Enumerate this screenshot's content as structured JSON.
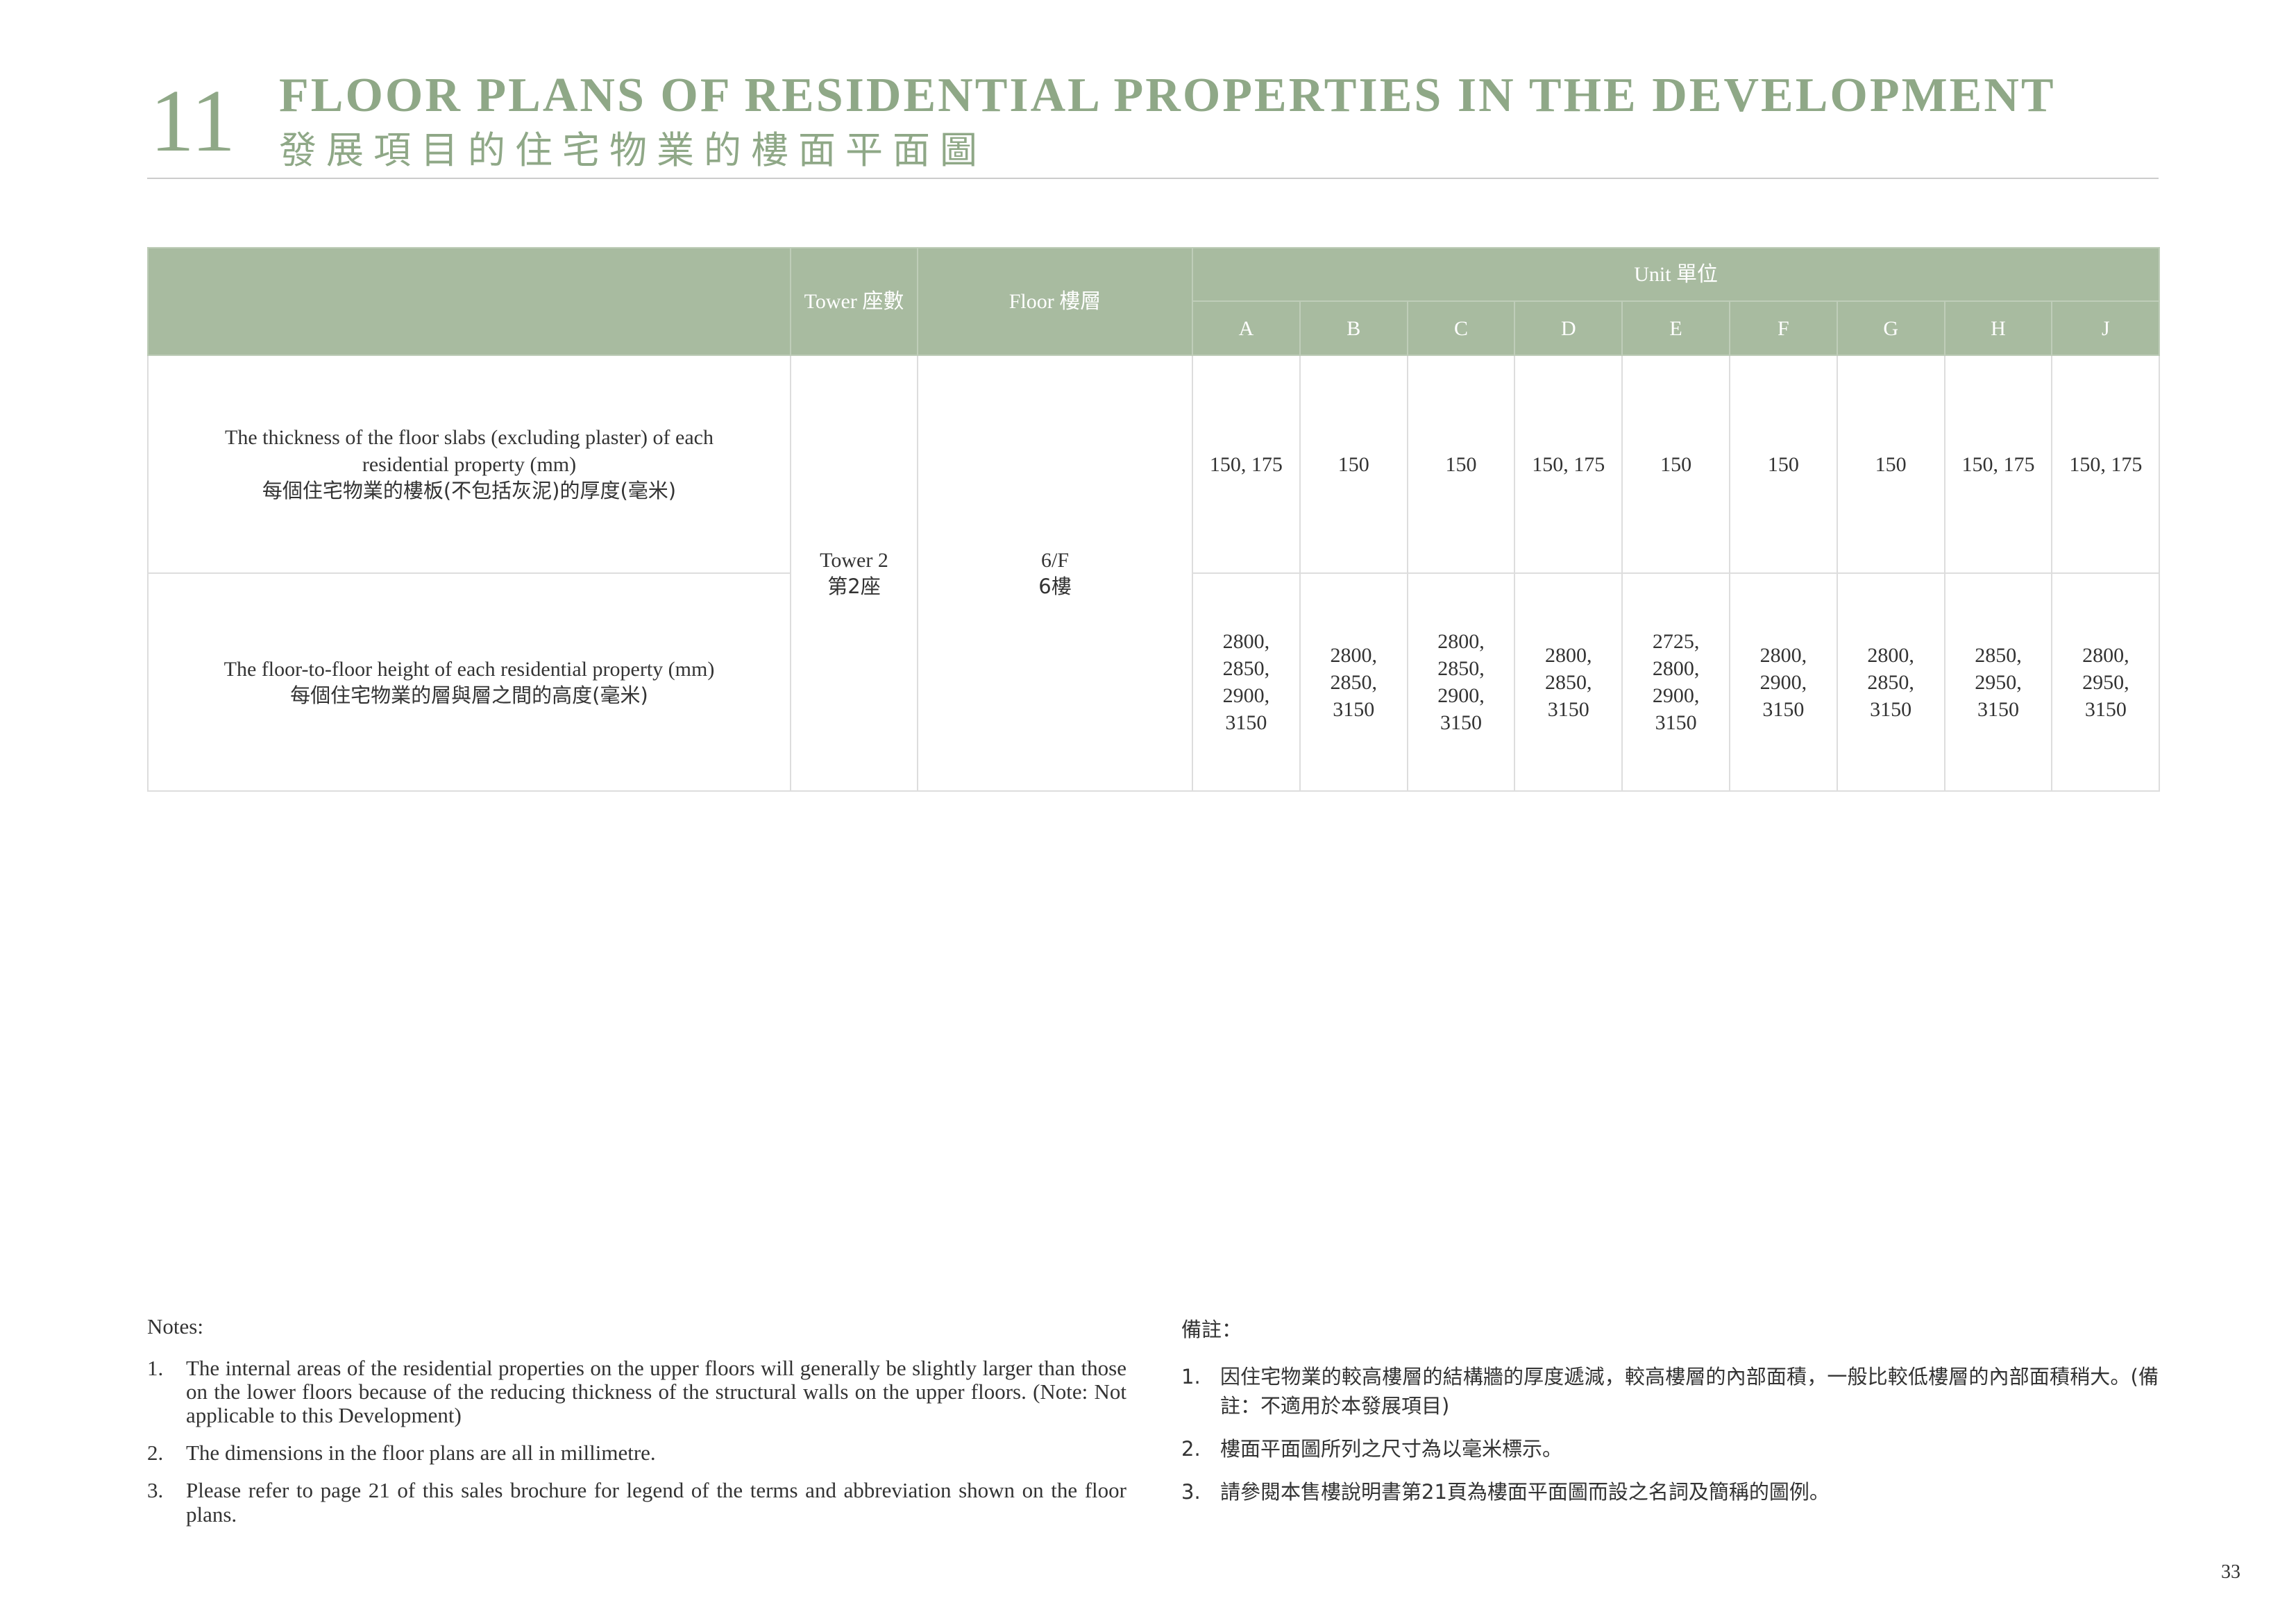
{
  "header": {
    "number": "11",
    "title_en": "FLOOR PLANS OF RESIDENTIAL PROPERTIES IN THE DEVELOPMENT",
    "title_zh": "發展項目的住宅物業的樓面平面圖"
  },
  "table": {
    "head": {
      "tower": "Tower 座數",
      "floor": "Floor 樓層",
      "unit": "Unit 單位",
      "units": [
        "A",
        "B",
        "C",
        "D",
        "E",
        "F",
        "G",
        "H",
        "J"
      ]
    },
    "tower": {
      "en": "Tower 2",
      "zh": "第2座"
    },
    "floor": {
      "en": "6/F",
      "zh": "6樓"
    },
    "rows": [
      {
        "label_en": "The thickness of the floor slabs (excluding plaster) of each residential property (mm)",
        "label_zh": "每個住宅物業的樓板(不包括灰泥)的厚度(毫米)",
        "values": [
          "150, 175",
          "150",
          "150",
          "150, 175",
          "150",
          "150",
          "150",
          "150, 175",
          "150, 175"
        ]
      },
      {
        "label_en": "The floor-to-floor height of each residential property (mm)",
        "label_zh": "每個住宅物業的層與層之間的高度(毫米)",
        "values": [
          "2800,\n2850,\n2900,\n3150",
          "2800,\n2850,\n3150",
          "2800,\n2850,\n2900,\n3150",
          "2800,\n2850,\n3150",
          "2725,\n2800,\n2900,\n3150",
          "2800,\n2900,\n3150",
          "2800,\n2850,\n3150",
          "2850,\n2950,\n3150",
          "2800,\n2950,\n3150"
        ]
      }
    ]
  },
  "notes": {
    "title_en": "Notes:",
    "items_en": [
      {
        "num": "1.",
        "text": "The internal areas of the residential properties on the upper floors will generally be slightly larger than those on the lower floors because of the reducing thickness of the structural walls on the upper floors. (Note: Not applicable to this Development)"
      },
      {
        "num": "2.",
        "text": "The dimensions in the floor plans are all in millimetre."
      },
      {
        "num": "3.",
        "text": "Please refer to page 21 of this sales brochure for legend of the terms and abbreviation shown on the floor plans."
      }
    ],
    "title_zh": "備註：",
    "items_zh": [
      {
        "num": "1.",
        "text": "因住宅物業的較高樓層的結構牆的厚度遞減，較高樓層的內部面積，一般比較低樓層的內部面積稍大。(備註：不適用於本發展項目)"
      },
      {
        "num": "2.",
        "text": "樓面平面圖所列之尺寸為以毫米標示。"
      },
      {
        "num": "3.",
        "text": "請參閱本售樓說明書第21頁為樓面平面圖而設之名詞及簡稱的圖例。"
      }
    ]
  },
  "page_number": "33"
}
